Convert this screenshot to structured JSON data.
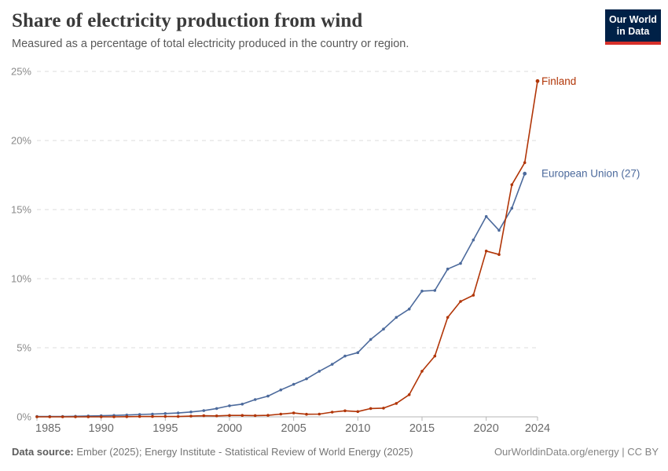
{
  "header": {
    "title": "Share of electricity production from wind",
    "subtitle": "Measured as a percentage of total electricity produced in the country or region.",
    "logo": {
      "line1": "Our World",
      "line2": "in Data"
    }
  },
  "footer": {
    "source_label": "Data source:",
    "source_text": " Ember (2025); Energy Institute - Statistical Review of World Energy (2025)",
    "link_text": "OurWorldinData.org/energy | CC BY"
  },
  "colors": {
    "finland": "#b13507",
    "european_union": "#4c6a9c",
    "gridline": "#dcdcdc",
    "axis_line": "#b5b5b5",
    "y_tick_text": "#8b8b8b",
    "x_tick_text": "#696969"
  },
  "chart_data": {
    "type": "line",
    "title": "Share of electricity production from wind",
    "subtitle": "Measured as a percentage of total electricity produced in the country or region.",
    "xlabel": "",
    "ylabel": "",
    "x_ticks": [
      1985,
      1990,
      1995,
      2000,
      2005,
      2010,
      2015,
      2020,
      2024
    ],
    "y_ticks": [
      0,
      5,
      10,
      15,
      20,
      25
    ],
    "y_tick_suffix": "%",
    "xlim": [
      1985,
      2024
    ],
    "ylim": [
      0,
      25
    ],
    "grid": "horizontal-dashed",
    "legend_position": "end-of-line-labels",
    "series": [
      {
        "name": "European Union (27)",
        "color": "#4c6a9c",
        "x": [
          1985,
          1986,
          1987,
          1988,
          1989,
          1990,
          1991,
          1992,
          1993,
          1994,
          1995,
          1996,
          1997,
          1998,
          1999,
          2000,
          2001,
          2002,
          2003,
          2004,
          2005,
          2006,
          2007,
          2008,
          2009,
          2010,
          2011,
          2012,
          2013,
          2014,
          2015,
          2016,
          2017,
          2018,
          2019,
          2020,
          2021,
          2022,
          2023
        ],
        "values": [
          0.02,
          0.03,
          0.03,
          0.04,
          0.06,
          0.08,
          0.1,
          0.13,
          0.17,
          0.2,
          0.24,
          0.28,
          0.35,
          0.45,
          0.6,
          0.8,
          0.92,
          1.25,
          1.5,
          1.95,
          2.35,
          2.75,
          3.3,
          3.8,
          4.4,
          4.65,
          5.6,
          6.35,
          7.2,
          7.8,
          9.1,
          9.15,
          10.7,
          11.1,
          12.8,
          14.5,
          13.5,
          15.1,
          17.6
        ]
      },
      {
        "name": "Finland",
        "color": "#b13507",
        "x": [
          1985,
          1986,
          1987,
          1988,
          1989,
          1990,
          1991,
          1992,
          1993,
          1994,
          1995,
          1996,
          1997,
          1998,
          1999,
          2000,
          2001,
          2002,
          2003,
          2004,
          2005,
          2006,
          2007,
          2008,
          2009,
          2010,
          2011,
          2012,
          2013,
          2014,
          2015,
          2016,
          2017,
          2018,
          2019,
          2020,
          2021,
          2022,
          2023,
          2024
        ],
        "values": [
          0.0,
          0.0,
          0.0,
          0.0,
          0.0,
          0.0,
          0.0,
          0.01,
          0.02,
          0.02,
          0.03,
          0.02,
          0.05,
          0.08,
          0.07,
          0.1,
          0.1,
          0.09,
          0.11,
          0.2,
          0.28,
          0.19,
          0.2,
          0.34,
          0.44,
          0.38,
          0.6,
          0.63,
          0.97,
          1.6,
          3.3,
          4.4,
          7.2,
          8.35,
          8.8,
          12.0,
          11.75,
          16.8,
          18.4,
          24.3
        ]
      }
    ]
  }
}
